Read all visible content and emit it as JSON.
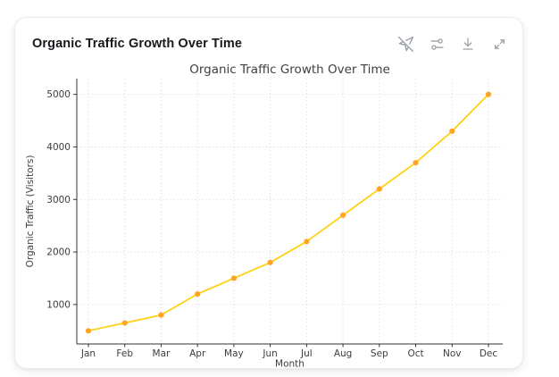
{
  "card": {
    "title": "Organic Traffic Growth Over Time",
    "toolbar": {
      "icons": [
        "navigation-off-icon",
        "sliders-icon",
        "download-icon",
        "expand-icon"
      ]
    }
  },
  "chart_data": {
    "type": "line",
    "title": "Organic Traffic Growth Over Time",
    "xlabel": "Month",
    "ylabel": "Organic Traffic (Visitors)",
    "categories": [
      "Jan",
      "Feb",
      "Mar",
      "Apr",
      "May",
      "Jun",
      "Jul",
      "Aug",
      "Sep",
      "Oct",
      "Nov",
      "Dec"
    ],
    "values": [
      500,
      650,
      800,
      1200,
      1500,
      1800,
      2200,
      2700,
      3200,
      3700,
      4300,
      5000
    ],
    "yticks": [
      1000,
      2000,
      3000,
      4000,
      5000
    ],
    "ylim": [
      250,
      5300
    ],
    "grid": true,
    "grid_style": "dotted",
    "legend": "none",
    "line_color": "#FFD117",
    "marker_color": "#FFA423",
    "axis_color": "#333333",
    "grid_color": "#d9d9d9",
    "text_color": "#3d3d3d",
    "title_color": "#3f3f3f"
  }
}
